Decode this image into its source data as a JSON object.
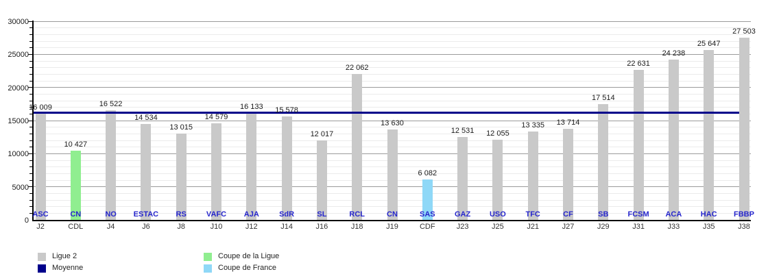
{
  "chart_data": {
    "type": "bar",
    "title": "",
    "ylim": [
      0,
      30000
    ],
    "y_tick_step": 5000,
    "y_minor_step": 1000,
    "y_tick_labels": [
      "0",
      "5000",
      "10000",
      "15000",
      "20000",
      "25000",
      "30000"
    ],
    "grid": "minor horizontal every 1000, major every 5000",
    "moyenne": {
      "label": "Moyenne",
      "value": 16179
    },
    "bars": [
      {
        "club": "ASC",
        "day": "J2",
        "value": 16009,
        "value_label": "16 009",
        "type": "ligue2"
      },
      {
        "club": "CN",
        "day": "CDL",
        "value": 10427,
        "value_label": "10 427",
        "type": "cdl"
      },
      {
        "club": "NO",
        "day": "J4",
        "value": 16522,
        "value_label": "16 522",
        "type": "ligue2"
      },
      {
        "club": "ESTAC",
        "day": "J6",
        "value": 14534,
        "value_label": "14 534",
        "type": "ligue2"
      },
      {
        "club": "RS",
        "day": "J8",
        "value": 13015,
        "value_label": "13 015",
        "type": "ligue2"
      },
      {
        "club": "VAFC",
        "day": "J10",
        "value": 14579,
        "value_label": "14 579",
        "type": "ligue2"
      },
      {
        "club": "AJA",
        "day": "J12",
        "value": 16133,
        "value_label": "16 133",
        "type": "ligue2"
      },
      {
        "club": "SdR",
        "day": "J14",
        "value": 15578,
        "value_label": "15 578",
        "type": "ligue2"
      },
      {
        "club": "SL",
        "day": "J16",
        "value": 12017,
        "value_label": "12 017",
        "type": "ligue2"
      },
      {
        "club": "RCL",
        "day": "J18",
        "value": 22062,
        "value_label": "22 062",
        "type": "ligue2"
      },
      {
        "club": "CN",
        "day": "J19",
        "value": 13630,
        "value_label": "13 630",
        "type": "ligue2"
      },
      {
        "club": "SAS",
        "day": "CDF",
        "value": 6082,
        "value_label": "6 082",
        "type": "cdf"
      },
      {
        "club": "GAZ",
        "day": "J23",
        "value": 12531,
        "value_label": "12 531",
        "type": "ligue2"
      },
      {
        "club": "USO",
        "day": "J25",
        "value": 12055,
        "value_label": "12 055",
        "type": "ligue2"
      },
      {
        "club": "TFC",
        "day": "J21",
        "value": 13335,
        "value_label": "13 335",
        "type": "ligue2"
      },
      {
        "club": "CF",
        "day": "J27",
        "value": 13714,
        "value_label": "13 714",
        "type": "ligue2"
      },
      {
        "club": "SB",
        "day": "J29",
        "value": 17514,
        "value_label": "17 514",
        "type": "ligue2"
      },
      {
        "club": "FCSM",
        "day": "J31",
        "value": 22631,
        "value_label": "22 631",
        "type": "ligue2"
      },
      {
        "club": "ACA",
        "day": "J33",
        "value": 24238,
        "value_label": "24 238",
        "type": "ligue2"
      },
      {
        "club": "HAC",
        "day": "J35",
        "value": 25647,
        "value_label": "25 647",
        "type": "ligue2"
      },
      {
        "club": "FBBP",
        "day": "J38",
        "value": 27503,
        "value_label": "27 503",
        "type": "ligue2"
      }
    ],
    "colors": {
      "ligue2": "#c9c9c9",
      "moyenne": "#00008b",
      "cdl": "#90ee90",
      "cdf": "#8fd8f7",
      "club_label": "#2626cc"
    },
    "legend_position": "bottom, two columns"
  },
  "legend": {
    "items": [
      {
        "label": "Ligue 2",
        "color": "#c9c9c9"
      },
      {
        "label": "Moyenne",
        "color": "#00008b"
      },
      {
        "label": "Coupe de la Ligue",
        "color": "#90ee90"
      },
      {
        "label": "Coupe de France",
        "color": "#8fd8f7"
      }
    ]
  }
}
